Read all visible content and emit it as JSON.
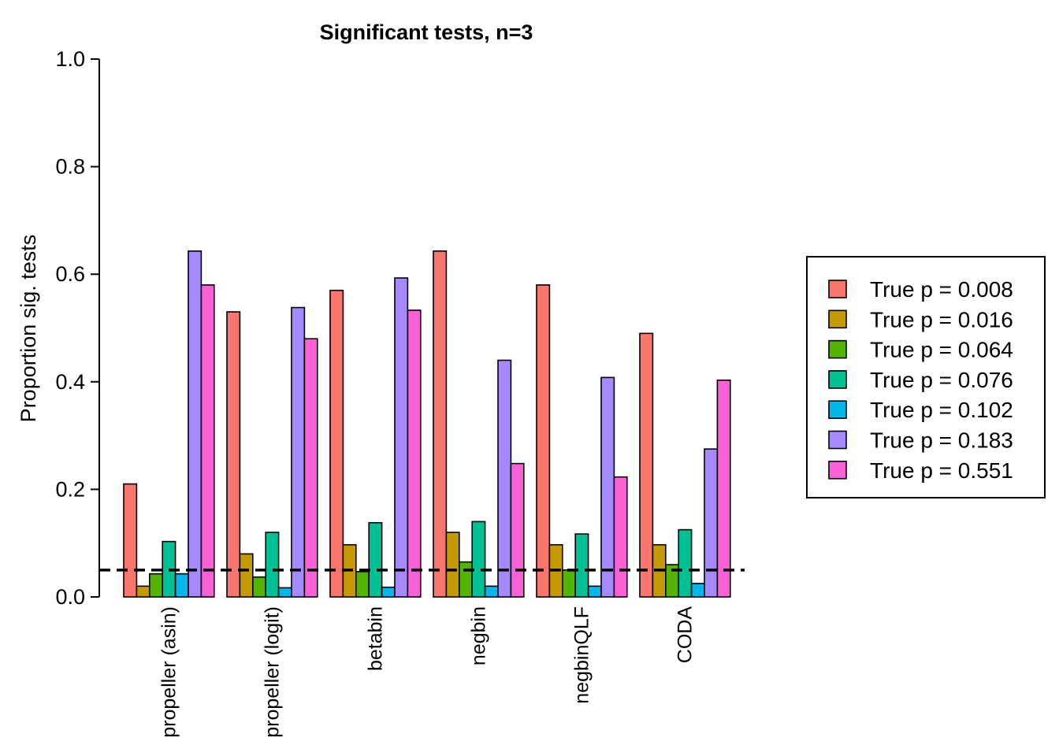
{
  "chart_data": {
    "type": "bar",
    "title": "Significant tests, n=3",
    "ylabel": "Proportion sig. tests",
    "xlabel": "",
    "ylim": [
      0,
      1
    ],
    "yticks": [
      "0.0",
      "0.2",
      "0.4",
      "0.6",
      "0.8",
      "1.0"
    ],
    "reference_line": 0.05,
    "categories": [
      "propeller (asin)",
      "propeller (logit)",
      "betabin",
      "negbin",
      "negbinQLF",
      "CODA"
    ],
    "series": [
      {
        "name": "True p = 0.008",
        "color": "#F8766D",
        "values": [
          0.21,
          0.53,
          0.57,
          0.643,
          0.58,
          0.49
        ]
      },
      {
        "name": "True p = 0.016",
        "color": "#C49A00",
        "values": [
          0.02,
          0.08,
          0.097,
          0.12,
          0.097,
          0.097
        ]
      },
      {
        "name": "True p = 0.064",
        "color": "#53B400",
        "values": [
          0.043,
          0.037,
          0.047,
          0.065,
          0.05,
          0.06
        ]
      },
      {
        "name": "True p = 0.076",
        "color": "#00C094",
        "values": [
          0.103,
          0.12,
          0.138,
          0.14,
          0.117,
          0.125
        ]
      },
      {
        "name": "True p = 0.102",
        "color": "#00B6EB",
        "values": [
          0.043,
          0.017,
          0.018,
          0.02,
          0.02,
          0.025
        ]
      },
      {
        "name": "True p = 0.183",
        "color": "#A58AFF",
        "values": [
          0.643,
          0.538,
          0.593,
          0.44,
          0.408,
          0.275
        ]
      },
      {
        "name": "True p = 0.551",
        "color": "#FB61D7",
        "values": [
          0.58,
          0.48,
          0.533,
          0.248,
          0.223,
          0.403
        ]
      }
    ],
    "legend_position": "right",
    "grid": false
  }
}
